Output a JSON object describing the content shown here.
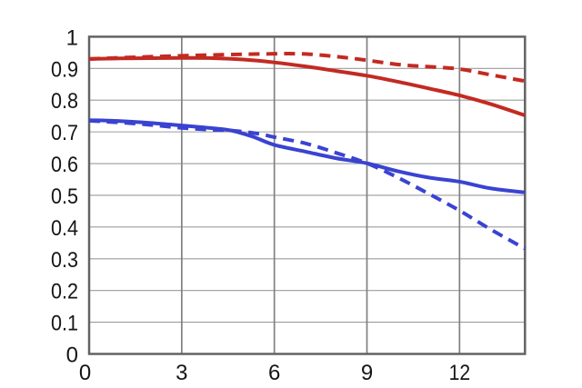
{
  "chart_data": {
    "type": "line",
    "title": "",
    "xlabel": "",
    "ylabel": "",
    "xlim": [
      0,
      14.12
    ],
    "ylim": [
      0,
      1
    ],
    "grid": true,
    "legend": "none",
    "x_ticks": [
      {
        "value": 0,
        "label": "0"
      },
      {
        "value": 3,
        "label": "3"
      },
      {
        "value": 6,
        "label": "6"
      },
      {
        "value": 9,
        "label": "9"
      },
      {
        "value": 12,
        "label": "12"
      }
    ],
    "y_ticks": [
      {
        "value": 0,
        "label": "0"
      },
      {
        "value": 0.1,
        "label": "0.1"
      },
      {
        "value": 0.2,
        "label": "0.2"
      },
      {
        "value": 0.3,
        "label": "0.3"
      },
      {
        "value": 0.4,
        "label": "0.4"
      },
      {
        "value": 0.5,
        "label": "0.5"
      },
      {
        "value": 0.6,
        "label": "0.6"
      },
      {
        "value": 0.7,
        "label": "0.7"
      },
      {
        "value": 0.8,
        "label": "0.8"
      },
      {
        "value": 0.9,
        "label": "0.9"
      },
      {
        "value": 1,
        "label": "1"
      }
    ],
    "colors": {
      "red": "#c32a22",
      "blue": "#3a43d1",
      "grid_h": "#9b9b9b",
      "grid_v": "#818181",
      "border": "#636363",
      "text": "#161616",
      "background": "#ffffff"
    },
    "series": [
      {
        "name": "red-solid",
        "color": "#c32a22",
        "style": "solid",
        "points": [
          [
            0,
            0.93
          ],
          [
            1,
            0.9315
          ],
          [
            2,
            0.9325
          ],
          [
            3,
            0.933
          ],
          [
            4,
            0.9325
          ],
          [
            5,
            0.928
          ],
          [
            6,
            0.919
          ],
          [
            7,
            0.9065
          ],
          [
            8,
            0.892
          ],
          [
            9,
            0.877
          ],
          [
            10,
            0.858
          ],
          [
            11,
            0.837
          ],
          [
            12,
            0.815
          ],
          [
            13,
            0.788
          ],
          [
            14.12,
            0.752
          ]
        ]
      },
      {
        "name": "blue-solid",
        "color": "#3a43d1",
        "style": "solid",
        "points": [
          [
            0,
            0.737
          ],
          [
            1,
            0.734
          ],
          [
            2,
            0.728
          ],
          [
            3,
            0.72
          ],
          [
            4,
            0.7115
          ],
          [
            4.6,
            0.7045
          ],
          [
            5.3,
            0.685
          ],
          [
            6,
            0.659
          ],
          [
            7,
            0.638
          ],
          [
            8,
            0.617
          ],
          [
            9,
            0.601
          ],
          [
            10,
            0.576
          ],
          [
            11,
            0.556
          ],
          [
            12,
            0.543
          ],
          [
            13,
            0.522
          ],
          [
            14.12,
            0.509
          ]
        ]
      },
      {
        "name": "red-dashed",
        "color": "#c32a22",
        "style": "dashed",
        "points": [
          [
            0,
            0.93
          ],
          [
            2,
            0.937
          ],
          [
            4,
            0.9425
          ],
          [
            5.5,
            0.9455
          ],
          [
            7,
            0.9455
          ],
          [
            8.5,
            0.932
          ],
          [
            10,
            0.9125
          ],
          [
            11,
            0.9055
          ],
          [
            12,
            0.898
          ],
          [
            13,
            0.88
          ],
          [
            14.12,
            0.86
          ]
        ]
      },
      {
        "name": "blue-dashed",
        "color": "#3a43d1",
        "style": "dashed",
        "points": [
          [
            0,
            0.735
          ],
          [
            1,
            0.7295
          ],
          [
            2,
            0.722
          ],
          [
            3,
            0.7125
          ],
          [
            4,
            0.7065
          ],
          [
            4.6,
            0.7045
          ],
          [
            5.5,
            0.694
          ],
          [
            6,
            0.6835
          ],
          [
            7,
            0.664
          ],
          [
            8,
            0.634
          ],
          [
            9,
            0.601
          ],
          [
            10,
            0.556
          ],
          [
            11,
            0.505
          ],
          [
            12,
            0.452
          ],
          [
            13,
            0.393
          ],
          [
            14.12,
            0.332
          ]
        ]
      }
    ]
  }
}
